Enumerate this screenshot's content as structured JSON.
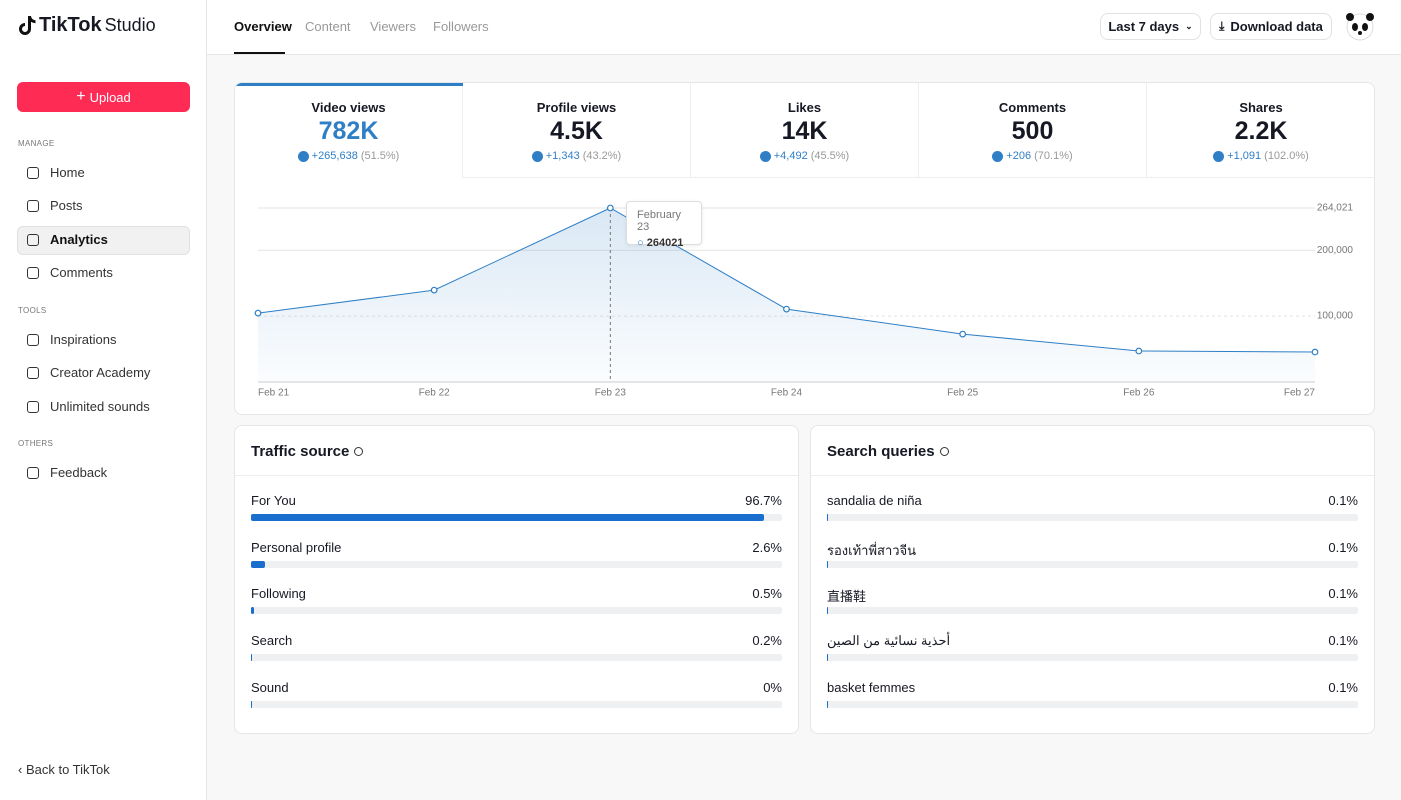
{
  "header": {
    "logo_brand": "TikTok",
    "logo_product": "Studio",
    "tabs": [
      "Overview",
      "Content",
      "Viewers",
      "Followers"
    ],
    "date_range": "Last 7 days",
    "download": "Download data"
  },
  "sidebar": {
    "upload": "Upload",
    "sections": [
      {
        "title": "MANAGE",
        "items": [
          "Home",
          "Posts",
          "Analytics",
          "Comments"
        ]
      },
      {
        "title": "TOOLS",
        "items": [
          "Inspirations",
          "Creator Academy",
          "Unlimited sounds"
        ]
      },
      {
        "title": "OTHERS",
        "items": [
          "Feedback"
        ]
      }
    ],
    "back": "Back to TikTok"
  },
  "metrics": [
    {
      "label": "Video views",
      "value": "782K",
      "change": "+265,638",
      "percent": "(51.5%)"
    },
    {
      "label": "Profile views",
      "value": "4.5K",
      "change": "+1,343",
      "percent": "(43.2%)"
    },
    {
      "label": "Likes",
      "value": "14K",
      "change": "+4,492",
      "percent": "(45.5%)"
    },
    {
      "label": "Comments",
      "value": "500",
      "change": "+206",
      "percent": "(70.1%)"
    },
    {
      "label": "Shares",
      "value": "2.2K",
      "change": "+1,091",
      "percent": "(102.0%)"
    }
  ],
  "chart_data": [
    {
      "type": "line",
      "categories": [
        "Feb 21",
        "Feb 22",
        "Feb 23",
        "Feb 24",
        "Feb 25",
        "Feb 26",
        "Feb 27"
      ],
      "values": [
        104500,
        139400,
        264021,
        110600,
        72700,
        47000,
        45500
      ],
      "color": "#2f7fc6",
      "ylim": [
        0,
        264021
      ],
      "yticks": [
        {
          "value": 100000,
          "label": "100,000"
        },
        {
          "value": 200000,
          "label": "200,000"
        },
        {
          "value": 264021,
          "label": "264,021"
        }
      ],
      "grid": true,
      "tooltip": {
        "title": "February 23",
        "value": 264021
      }
    },
    {
      "type": "hbar",
      "title": "Traffic source",
      "categories": [
        "For You",
        "Personal profile",
        "Following",
        "Search",
        "Sound"
      ],
      "values": [
        96.7,
        2.6,
        0.5,
        0.2,
        0
      ],
      "value_labels": [
        "96.7%",
        "2.6%",
        "0.5%",
        "0.2%",
        "0%"
      ],
      "xlim": [
        0,
        100
      ],
      "color": "#1a6fce"
    },
    {
      "type": "hbar",
      "title": "Search queries",
      "categories": [
        "sandalia de niña",
        "รองเท้าพี่สาวจีน",
        "直播鞋",
        "أحذية نسائية من الصين",
        "basket femmes"
      ],
      "values": [
        0.1,
        0.1,
        0.1,
        0.1,
        0.1
      ],
      "value_labels": [
        "0.1%",
        "0.1%",
        "0.1%",
        "0.1%",
        "0.1%"
      ],
      "xlim": [
        0,
        100
      ],
      "color": "#1a6fce"
    }
  ]
}
